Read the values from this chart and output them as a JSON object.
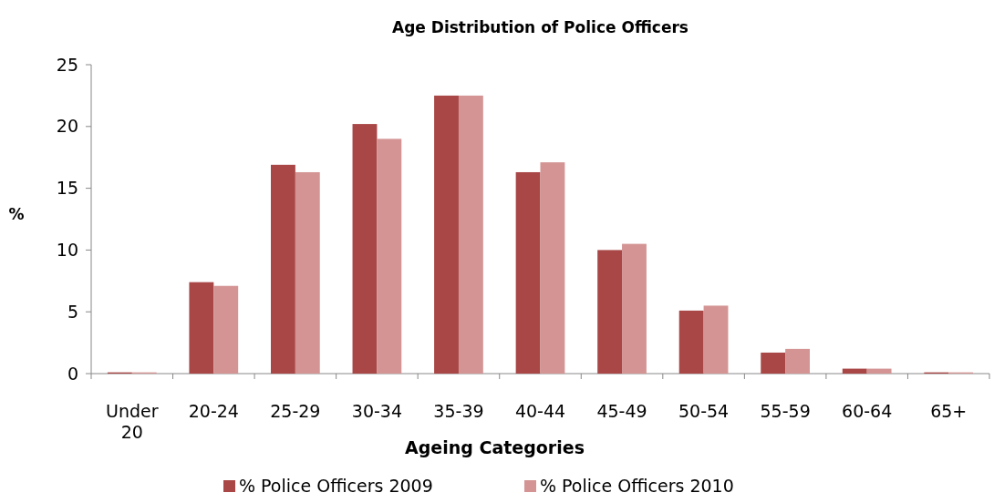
{
  "chart_data": {
    "type": "bar",
    "title": "Age Distribution of Police Officers",
    "xlabel": "Ageing Categories",
    "ylabel": "%",
    "categories": [
      "Under 20",
      "20-24",
      "25-29",
      "30-34",
      "35-39",
      "40-44",
      "45-49",
      "50-54",
      "55-59",
      "60-64",
      "65+"
    ],
    "series": [
      {
        "name": "% Police Officers 2009",
        "color": "#a94646",
        "values": [
          0.1,
          7.4,
          16.9,
          20.2,
          22.5,
          16.3,
          10.0,
          5.1,
          1.7,
          0.4,
          0.1
        ]
      },
      {
        "name": "% Police Officers 2010",
        "color": "#d49494",
        "values": [
          0.1,
          7.1,
          16.3,
          19.0,
          22.5,
          17.1,
          10.5,
          5.5,
          2.0,
          0.4,
          0.1
        ]
      }
    ],
    "ylim": [
      0,
      25
    ],
    "yticks": [
      0,
      5,
      10,
      15,
      20,
      25
    ],
    "grid": false,
    "legend": "bottom"
  }
}
